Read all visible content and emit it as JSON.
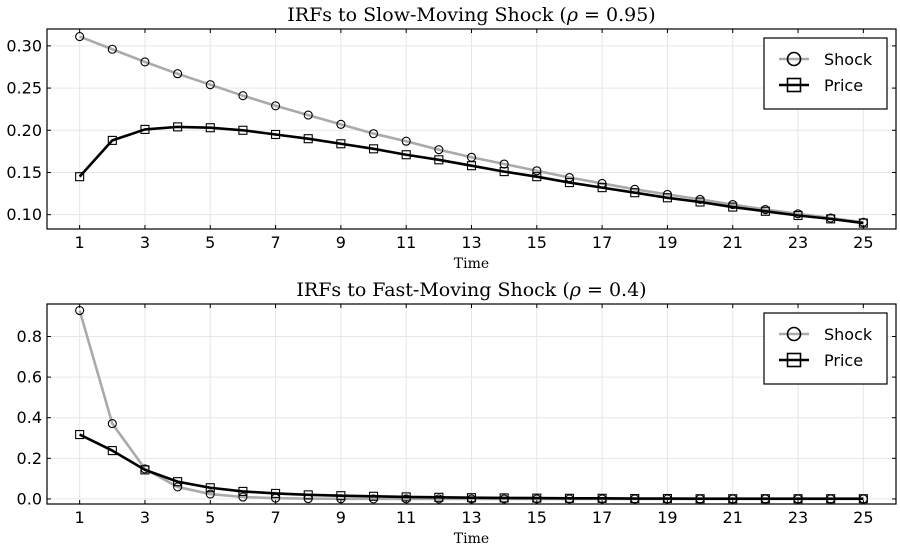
{
  "chart_data": [
    {
      "type": "line",
      "title_prefix": "IRFs to Slow-Moving Shock (",
      "title_greek": "ρ",
      "title_suffix": " = 0.95)",
      "xlabel": "Time",
      "ylabel": "",
      "xlim": [
        0.0,
        26.0
      ],
      "ylim": [
        0.083,
        0.32
      ],
      "xticks": [
        1,
        3,
        5,
        7,
        9,
        11,
        13,
        15,
        17,
        19,
        21,
        23,
        25
      ],
      "yticks": [
        0.1,
        0.15,
        0.2,
        0.25,
        0.3
      ],
      "ytick_labels": [
        "0.10",
        "0.15",
        "0.20",
        "0.25",
        "0.30"
      ],
      "grid": true,
      "legend_position": "top-right",
      "x": [
        1,
        2,
        3,
        4,
        5,
        6,
        7,
        8,
        9,
        10,
        11,
        12,
        13,
        14,
        15,
        16,
        17,
        18,
        19,
        20,
        21,
        22,
        23,
        24,
        25
      ],
      "series": [
        {
          "name": "Shock",
          "marker": "circle",
          "color": "#aaaaaa",
          "values": [
            0.311,
            0.296,
            0.281,
            0.267,
            0.254,
            0.241,
            0.229,
            0.218,
            0.207,
            0.196,
            0.187,
            0.177,
            0.168,
            0.16,
            0.152,
            0.144,
            0.137,
            0.13,
            0.124,
            0.118,
            0.112,
            0.106,
            0.101,
            0.096,
            0.091
          ]
        },
        {
          "name": "Price",
          "marker": "square",
          "color": "#000000",
          "values": [
            0.145,
            0.188,
            0.201,
            0.204,
            0.203,
            0.2,
            0.195,
            0.19,
            0.184,
            0.178,
            0.171,
            0.165,
            0.158,
            0.151,
            0.145,
            0.138,
            0.132,
            0.126,
            0.12,
            0.115,
            0.109,
            0.104,
            0.099,
            0.095,
            0.09
          ]
        }
      ]
    },
    {
      "type": "line",
      "title_prefix": "IRFs to Fast-Moving Shock (",
      "title_greek": "ρ",
      "title_suffix": " = 0.4)",
      "xlabel": "Time",
      "ylabel": "",
      "xlim": [
        0.0,
        26.0
      ],
      "ylim": [
        -0.025,
        0.96
      ],
      "xticks": [
        1,
        3,
        5,
        7,
        9,
        11,
        13,
        15,
        17,
        19,
        21,
        23,
        25
      ],
      "yticks": [
        0.0,
        0.2,
        0.4,
        0.6,
        0.8
      ],
      "ytick_labels": [
        "0.0",
        "0.2",
        "0.4",
        "0.6",
        "0.8"
      ],
      "grid": true,
      "legend_position": "top-right",
      "x": [
        1,
        2,
        3,
        4,
        5,
        6,
        7,
        8,
        9,
        10,
        11,
        12,
        13,
        14,
        15,
        16,
        17,
        18,
        19,
        20,
        21,
        22,
        23,
        24,
        25
      ],
      "series": [
        {
          "name": "Shock",
          "marker": "circle",
          "color": "#aaaaaa",
          "values": [
            0.928,
            0.371,
            0.148,
            0.059,
            0.024,
            0.0095,
            0.0038,
            0.0015,
            0.0006,
            0.0002,
            0.0001,
            0,
            0,
            0,
            0,
            0,
            0,
            0,
            0,
            0,
            0,
            0,
            0,
            0,
            0
          ]
        },
        {
          "name": "Price",
          "marker": "square",
          "color": "#000000",
          "values": [
            0.317,
            0.238,
            0.143,
            0.085,
            0.055,
            0.037,
            0.027,
            0.02,
            0.016,
            0.013,
            0.01,
            0.008,
            0.006,
            0.005,
            0.004,
            0.003,
            0.003,
            0.002,
            0.002,
            0.001,
            0.001,
            0.001,
            0.001,
            0.001,
            0.001
          ]
        }
      ]
    }
  ]
}
